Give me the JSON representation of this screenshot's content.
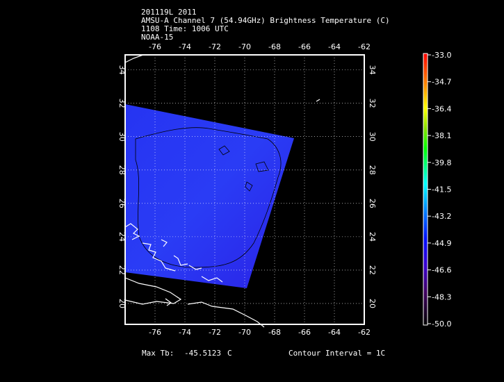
{
  "header": {
    "line1": "201119L 2011",
    "line2": "AMSU-A Channel 7 (54.94GHz) Brightness Temperature (C)",
    "line3": "1108 Time: 1006 UTC",
    "line4": "NOAA-15"
  },
  "map": {
    "lon_range": [
      -78,
      -62
    ],
    "lat_range": [
      18.75,
      34.9
    ],
    "lon_ticks": [
      "-76",
      "-74",
      "-72",
      "-70",
      "-68",
      "-66",
      "-64",
      "-62"
    ],
    "lat_ticks": [
      "20",
      "22",
      "24",
      "26",
      "28",
      "30",
      "32",
      "34"
    ],
    "grid": "dotted",
    "swath_color": "#2a2cf0",
    "coastline_color": "#ffffff",
    "contour_color": "#000000"
  },
  "colorbar": {
    "labels": [
      "-33.0",
      "-34.7",
      "-36.4",
      "-38.1",
      "-39.8",
      "-41.5",
      "-43.2",
      "-44.9",
      "-46.6",
      "-48.3",
      "-50.0"
    ],
    "range": [
      -50.0,
      -33.0
    ],
    "colormap": "rainbow (black-purple-blue-cyan-green-yellow-orange-red)"
  },
  "footer": {
    "max_tb_label": "Max Tb:",
    "max_tb_value": "-45.5123",
    "max_tb_unit": "C",
    "contour_interval": "Contour Interval = 1C"
  }
}
